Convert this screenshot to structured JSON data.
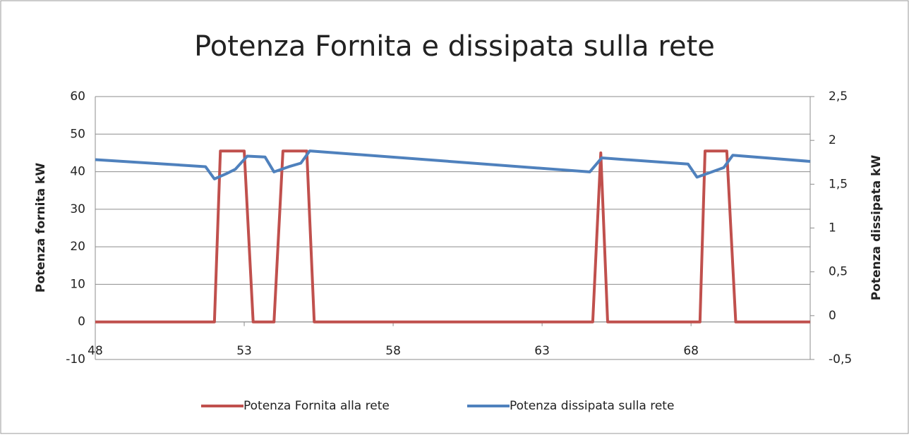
{
  "chart_data": {
    "type": "line",
    "title": "Potenza Fornita e dissipata sulla rete",
    "y_label": "Potenza  fornita kW",
    "y2_label": "Potenza dissipata  kW",
    "xlim": [
      48,
      72
    ],
    "xticks": [
      48,
      53,
      58,
      63,
      68
    ],
    "ylim": [
      -10,
      60
    ],
    "yticks": [
      -10,
      0,
      10,
      20,
      30,
      40,
      50,
      60
    ],
    "y2lim": [
      -0.5,
      2.5
    ],
    "y2ticks": [
      {
        "value": -0.5,
        "label": "-0,5"
      },
      0,
      {
        "value": 0.5,
        "label": "0,5"
      },
      1,
      {
        "value": 1.5,
        "label": "1,5"
      },
      2,
      {
        "value": 2.5,
        "label": "2,5"
      }
    ],
    "grid": true,
    "legend": "bottom",
    "series": [
      {
        "name": "Potenza Fornita alla rete",
        "color": "#c0504d",
        "x": [
          48,
          51.9,
          52.0,
          52.2,
          53.0,
          53.3,
          54.0,
          54.3,
          55.1,
          55.35,
          64.7,
          64.97,
          65.2,
          68.3,
          68.47,
          69.2,
          69.5,
          72
        ],
        "values": [
          0,
          0,
          0,
          45.5,
          45.5,
          0,
          0,
          45.5,
          45.5,
          0,
          0,
          45,
          0,
          0,
          45.5,
          45.5,
          0,
          0
        ]
      },
      {
        "name": "Potenza dissipata sulla rete",
        "color": "#4f81bd",
        "axis": "y2",
        "x": [
          48,
          51.7,
          52.0,
          52.4,
          52.7,
          53.1,
          53.7,
          54.0,
          54.5,
          54.9,
          55.2,
          64.6,
          65.0,
          67.9,
          68.2,
          68.7,
          69.1,
          69.4,
          72
        ],
        "values": [
          1.78,
          1.7,
          1.56,
          1.62,
          1.67,
          1.82,
          1.81,
          1.64,
          1.7,
          1.74,
          1.88,
          1.64,
          1.8,
          1.73,
          1.58,
          1.64,
          1.69,
          1.83,
          1.76
        ]
      }
    ]
  }
}
